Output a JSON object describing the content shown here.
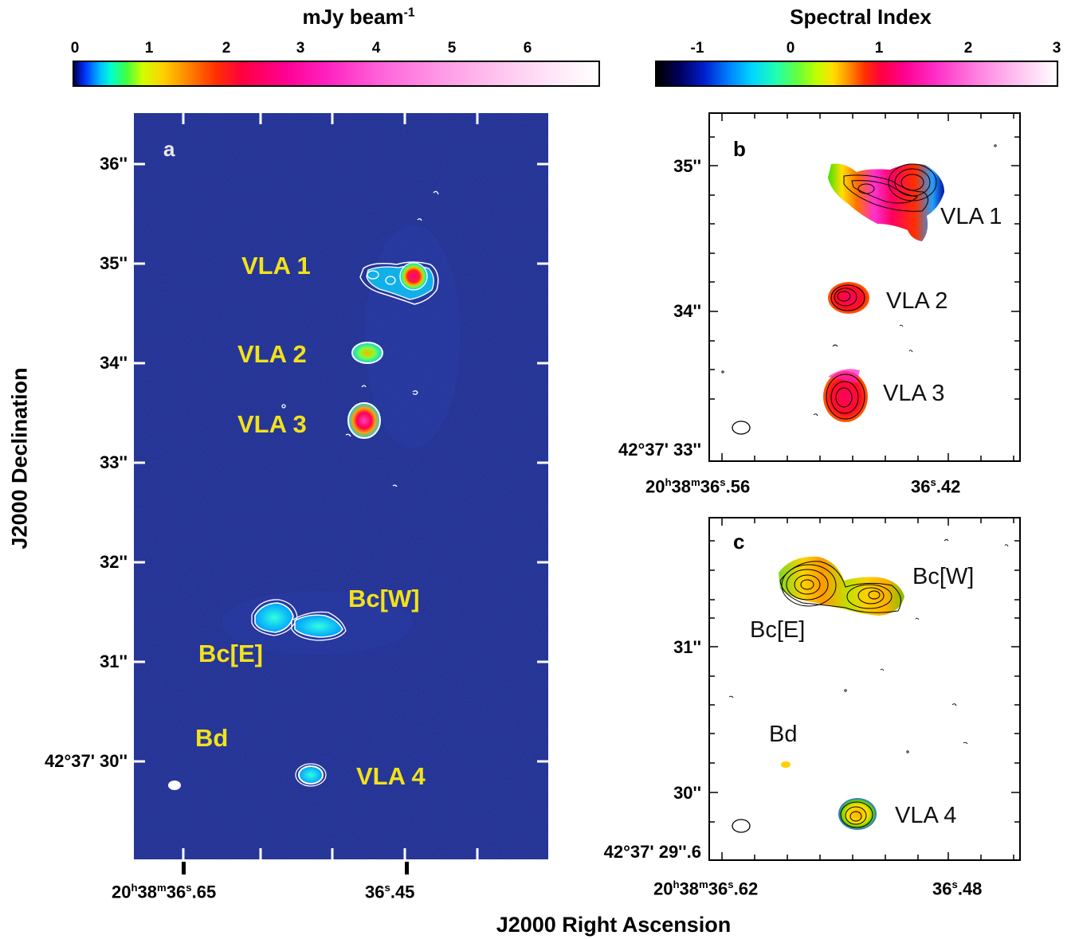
{
  "colorbar_left": {
    "title": "mJy beam",
    "title_sup": "-1",
    "ticks": [
      "0",
      "1",
      "2",
      "3",
      "4",
      "5",
      "6"
    ]
  },
  "colorbar_right": {
    "title": "Spectral Index",
    "ticks": [
      "-1",
      "0",
      "1",
      "2",
      "3"
    ]
  },
  "panel_a": {
    "letter": "a",
    "dec_labels": [
      "36''",
      "35''",
      "34''",
      "33''",
      "32''",
      "31''"
    ],
    "dec_label_last": "42°37' 30''",
    "ra_label_1_h": "20",
    "ra_label_1_m": "38",
    "ra_label_1_s": "36",
    "ra_label_1_frac": ".65",
    "ra_label_2_s": "36",
    "ra_label_2_frac": ".45",
    "sources": [
      "VLA 1",
      "VLA 2",
      "VLA 3",
      "Bc[W]",
      "Bc[E]",
      "Bd",
      "VLA 4"
    ]
  },
  "panel_b": {
    "letter": "b",
    "dec_labels": [
      "35''",
      "34''"
    ],
    "dec_label_last": "42°37' 33''",
    "ra_label_1_h": "20",
    "ra_label_1_m": "38",
    "ra_label_1_s": "36",
    "ra_label_1_frac": ".56",
    "ra_label_2_s": "36",
    "ra_label_2_frac": ".42",
    "sources": [
      "VLA 1",
      "VLA 2",
      "VLA 3"
    ]
  },
  "panel_c": {
    "letter": "c",
    "dec_labels": [
      "31''",
      "30''"
    ],
    "dec_label_last": "42°37' 29''.6",
    "ra_label_1_h": "20",
    "ra_label_1_m": "38",
    "ra_label_1_s": "36",
    "ra_label_1_frac": ".62",
    "ra_label_2_s": "36",
    "ra_label_2_frac": ".48",
    "sources": [
      "Bc[W]",
      "Bc[E]",
      "Bd",
      "VLA 4"
    ]
  },
  "axis_titles": {
    "y": "J2000 Declination",
    "x": "J2000 Right Ascension"
  },
  "colors": {
    "sky_background": "#1b2a8c",
    "label_yellow": "#f2e21a"
  }
}
